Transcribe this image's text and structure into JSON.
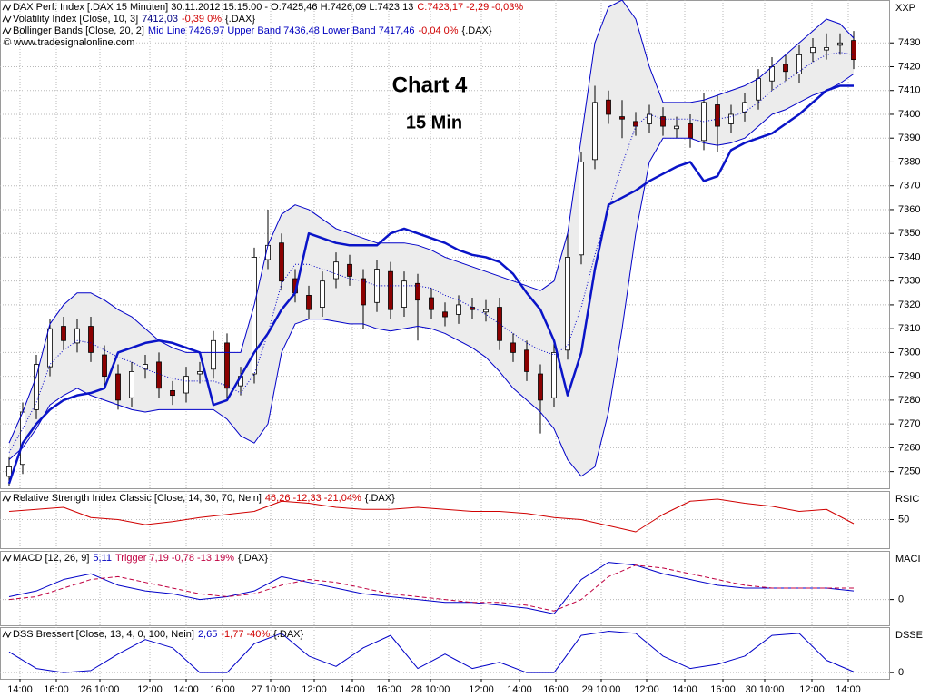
{
  "chart_data": [
    {
      "type": "candlestick",
      "header": [
        [
          {
            "text": "DAX Perf. Index [.DAX  15 Minuten] 30.11.2012 15:15:00 - O:7425,46 H:7426,09 L:7423,13",
            "color": "#000000"
          },
          {
            "text": "C:7423,17 -2,29 -0,03%",
            "color": "#d00000"
          }
        ],
        [
          {
            "text": "Volatility Index [Close, 10, 3]",
            "color": "#000000"
          },
          {
            "text": "7412,03",
            "color": "#000080"
          },
          {
            "text": "-0,39 0%",
            "color": "#d00000"
          },
          {
            "text": "{.DAX}",
            "color": "#000000"
          }
        ],
        [
          {
            "text": "Bollinger Bands [Close, 20, 2]",
            "color": "#000000"
          },
          {
            "text": "Mid Line 7426,97 Upper Band 7436,48 Lower Band 7417,46",
            "color": "#0000c0"
          },
          {
            "text": "-0,04 0%",
            "color": "#d00000"
          },
          {
            "text": "{.DAX}",
            "color": "#000000"
          }
        ]
      ],
      "source": "© www.tradesignalonline.com",
      "annotations": [
        {
          "text": "Chart 4",
          "color": "#000000"
        },
        {
          "text": "15 Min",
          "color": "#1c1cd0"
        }
      ],
      "right_label": "XXP",
      "up_color": "#ffffff",
      "down_color": "#8b0000",
      "band_fill": "#ececec",
      "x": [
        2,
        5,
        8,
        11,
        14,
        17,
        20,
        23,
        26,
        29,
        32,
        35,
        38,
        41,
        44,
        47,
        50,
        53,
        56,
        59,
        62,
        65,
        68,
        71,
        74,
        77,
        80,
        83,
        86,
        89,
        92,
        95,
        98,
        101,
        104,
        107,
        110,
        113,
        116,
        119,
        122,
        125,
        128,
        131,
        134,
        137,
        140,
        143,
        146,
        149,
        152,
        155,
        158,
        161,
        164,
        167,
        170,
        173,
        176,
        179,
        182,
        185,
        188
      ],
      "open": [
        7248,
        7253,
        7276,
        7294,
        7311,
        7304,
        7311,
        7299,
        7291,
        7281,
        7293,
        7296,
        7284,
        7283,
        7291,
        7293,
        7304,
        7286,
        7291,
        7339,
        7346,
        7331,
        7324,
        7319,
        7331,
        7337,
        7331,
        7321,
        7334,
        7319,
        7329,
        7323,
        7317,
        7316,
        7319,
        7317,
        7319,
        7304,
        7301,
        7291,
        7281,
        7301,
        7341,
        7381,
        7406,
        7399,
        7397,
        7396,
        7399,
        7394,
        7396,
        7389,
        7404,
        7396,
        7401,
        7406,
        7414,
        7421,
        7417,
        7426,
        7427,
        7429,
        7431
      ],
      "high": [
        7256,
        7279,
        7299,
        7314,
        7315,
        7314,
        7315,
        7303,
        7295,
        7296,
        7299,
        7300,
        7288,
        7294,
        7296,
        7309,
        7308,
        7294,
        7344,
        7360,
        7350,
        7335,
        7328,
        7334,
        7342,
        7341,
        7335,
        7339,
        7338,
        7334,
        7333,
        7327,
        7321,
        7324,
        7323,
        7322,
        7323,
        7308,
        7305,
        7295,
        7304,
        7350,
        7384,
        7412,
        7410,
        7406,
        7401,
        7404,
        7403,
        7399,
        7400,
        7409,
        7408,
        7404,
        7409,
        7419,
        7424,
        7425,
        7429,
        7432,
        7434,
        7434,
        7435
      ],
      "low": [
        7244,
        7249,
        7272,
        7290,
        7301,
        7300,
        7296,
        7286,
        7276,
        7277,
        7289,
        7281,
        7278,
        7279,
        7287,
        7289,
        7281,
        7282,
        7287,
        7335,
        7326,
        7321,
        7314,
        7315,
        7327,
        7328,
        7310,
        7317,
        7314,
        7315,
        7305,
        7314,
        7311,
        7312,
        7314,
        7313,
        7301,
        7296,
        7288,
        7266,
        7277,
        7297,
        7337,
        7377,
        7396,
        7390,
        7391,
        7392,
        7391,
        7390,
        7386,
        7385,
        7384,
        7392,
        7397,
        7402,
        7410,
        7414,
        7413,
        7422,
        7423,
        7425,
        7419
      ],
      "close": [
        7252,
        7275,
        7295,
        7310,
        7305,
        7310,
        7300,
        7290,
        7280,
        7292,
        7295,
        7285,
        7282,
        7290,
        7292,
        7305,
        7285,
        7290,
        7340,
        7345,
        7330,
        7325,
        7318,
        7330,
        7338,
        7332,
        7320,
        7335,
        7318,
        7330,
        7322,
        7318,
        7315,
        7320,
        7318,
        7318,
        7305,
        7300,
        7292,
        7280,
        7300,
        7340,
        7380,
        7405,
        7400,
        7398,
        7395,
        7400,
        7395,
        7395,
        7390,
        7405,
        7395,
        7400,
        7405,
        7415,
        7420,
        7418,
        7425,
        7428,
        7428,
        7430,
        7423
      ],
      "series": [
        {
          "color": "#0000c8",
          "width": 1,
          "dash": "none",
          "values": [
            7262,
            7275,
            7290,
            7312,
            7320,
            7325,
            7325,
            7322,
            7318,
            7315,
            7310,
            7305,
            7302,
            7300,
            7300,
            7300,
            7300,
            7300,
            7320,
            7345,
            7358,
            7362,
            7360,
            7356,
            7352,
            7350,
            7348,
            7346,
            7346,
            7346,
            7345,
            7343,
            7340,
            7338,
            7336,
            7334,
            7332,
            7330,
            7328,
            7326,
            7330,
            7350,
            7390,
            7430,
            7445,
            7448,
            7440,
            7420,
            7405,
            7405,
            7405,
            7406,
            7408,
            7410,
            7412,
            7415,
            7420,
            7425,
            7430,
            7435,
            7440,
            7438,
            7432
          ]
        },
        {
          "color": "#0000c8",
          "width": 1,
          "dash": "1 2",
          "values": [
            7258,
            7268,
            7279,
            7295,
            7301,
            7305,
            7304,
            7301,
            7298,
            7296,
            7293,
            7291,
            7289,
            7288,
            7288,
            7288,
            7286,
            7283,
            7291,
            7308,
            7329,
            7337,
            7337,
            7335,
            7333,
            7331,
            7330,
            7328,
            7328,
            7328,
            7328,
            7327,
            7324,
            7322,
            7319,
            7316,
            7312,
            7308,
            7304,
            7301,
            7299,
            7303,
            7319,
            7341,
            7360,
            7379,
            7395,
            7400,
            7398,
            7398,
            7398,
            7397,
            7398,
            7399,
            7401,
            7405,
            7410,
            7414,
            7418,
            7422,
            7425,
            7426,
            7425
          ]
        },
        {
          "color": "#0000c8",
          "width": 1,
          "dash": "none",
          "values": [
            7255,
            7260,
            7268,
            7278,
            7282,
            7285,
            7282,
            7280,
            7278,
            7276,
            7275,
            7276,
            7276,
            7276,
            7276,
            7276,
            7272,
            7265,
            7262,
            7270,
            7300,
            7312,
            7314,
            7314,
            7313,
            7312,
            7312,
            7310,
            7309,
            7310,
            7311,
            7310,
            7308,
            7305,
            7302,
            7298,
            7292,
            7285,
            7280,
            7275,
            7268,
            7255,
            7248,
            7252,
            7275,
            7310,
            7350,
            7380,
            7390,
            7390,
            7390,
            7388,
            7387,
            7388,
            7390,
            7395,
            7400,
            7402,
            7405,
            7408,
            7410,
            7413,
            7417
          ]
        },
        {
          "color": "#0a14c8",
          "width": 2.5,
          "dash": "none",
          "values": [
            7245,
            7262,
            7270,
            7276,
            7280,
            7282,
            7283,
            7285,
            7300,
            7302,
            7304,
            7305,
            7304,
            7302,
            7300,
            7278,
            7280,
            7290,
            7300,
            7308,
            7318,
            7325,
            7350,
            7348,
            7346,
            7345,
            7345,
            7345,
            7350,
            7352,
            7350,
            7348,
            7346,
            7343,
            7341,
            7340,
            7338,
            7333,
            7325,
            7318,
            7305,
            7282,
            7300,
            7335,
            7362,
            7365,
            7368,
            7372,
            7375,
            7378,
            7380,
            7372,
            7374,
            7385,
            7388,
            7390,
            7392,
            7396,
            7400,
            7405,
            7410,
            7412,
            7412
          ]
        }
      ],
      "xlim": [
        0,
        196
      ],
      "ylim": [
        7243,
        7448
      ],
      "xticks": [
        {
          "value": 4.4,
          "label": "14:00"
        },
        {
          "value": 12.4,
          "label": "16:00"
        },
        {
          "value": 22,
          "label": "26 10:00"
        },
        {
          "value": 33,
          "label": "12:00"
        },
        {
          "value": 41,
          "label": "14:00"
        },
        {
          "value": 49,
          "label": "16:00"
        },
        {
          "value": 59.6,
          "label": "27 10:00"
        },
        {
          "value": 69.2,
          "label": "12:00"
        },
        {
          "value": 77.6,
          "label": "14:00"
        },
        {
          "value": 85.6,
          "label": "16:00"
        },
        {
          "value": 94.8,
          "label": "28 10:00"
        },
        {
          "value": 106,
          "label": "12:00"
        },
        {
          "value": 114.4,
          "label": "14:00"
        },
        {
          "value": 122.4,
          "label": "16:00"
        },
        {
          "value": 132.4,
          "label": "29 10:00"
        },
        {
          "value": 142.4,
          "label": "12:00"
        },
        {
          "value": 150.8,
          "label": "14:00"
        },
        {
          "value": 159.2,
          "label": "16:00"
        },
        {
          "value": 168.4,
          "label": "30 10:00"
        },
        {
          "value": 178.8,
          "label": "12:00"
        },
        {
          "value": 186.8,
          "label": "14:00"
        }
      ],
      "yticks": [
        7250,
        7260,
        7270,
        7280,
        7290,
        7300,
        7310,
        7320,
        7330,
        7340,
        7350,
        7360,
        7370,
        7380,
        7390,
        7400,
        7410,
        7420,
        7430
      ],
      "grid": true
    },
    {
      "type": "line",
      "header": [
        [
          {
            "text": "Relative Strength Index Classic [Close, 14, 30, 70, Nein]",
            "color": "#000000"
          },
          {
            "text": "46,26 -12,33 -21,04%",
            "color": "#d00000"
          },
          {
            "text": "{.DAX}",
            "color": "#000000"
          }
        ]
      ],
      "right_label": "RSIC",
      "x": [
        2,
        8,
        14,
        20,
        26,
        32,
        38,
        44,
        50,
        56,
        62,
        68,
        74,
        80,
        86,
        92,
        98,
        104,
        110,
        116,
        122,
        128,
        134,
        140,
        146,
        152,
        158,
        164,
        170,
        176,
        182,
        188
      ],
      "series": [
        {
          "color": "#d00000",
          "width": 1,
          "dash": "none",
          "values": [
            58,
            60,
            62,
            52,
            50,
            45,
            48,
            52,
            55,
            58,
            68,
            66,
            62,
            60,
            60,
            62,
            60,
            58,
            58,
            56,
            52,
            50,
            44,
            38,
            55,
            68,
            70,
            66,
            63,
            58,
            60,
            46
          ]
        }
      ],
      "xlim": [
        0,
        196
      ],
      "ylim": [
        22,
        78
      ],
      "yticks": [
        50
      ],
      "grid": true
    },
    {
      "type": "line",
      "header": [
        [
          {
            "text": "MACD [12, 26, 9]",
            "color": "#000000"
          },
          {
            "text": "5,11",
            "color": "#0000c0"
          },
          {
            "text": "Trigger 7,19 -0,78 -13,19%",
            "color": "#c00040"
          },
          {
            "text": "{.DAX}",
            "color": "#000000"
          }
        ]
      ],
      "right_label": "MACI",
      "x": [
        2,
        8,
        14,
        20,
        26,
        32,
        38,
        44,
        50,
        56,
        62,
        68,
        74,
        80,
        86,
        92,
        98,
        104,
        110,
        116,
        122,
        128,
        134,
        140,
        146,
        152,
        158,
        164,
        170,
        176,
        182,
        188
      ],
      "series": [
        {
          "color": "#0000c8",
          "width": 1,
          "dash": "none",
          "values": [
            1,
            3,
            7,
            9,
            5,
            3,
            2,
            0,
            1,
            3,
            8,
            6,
            4,
            2,
            1,
            0,
            -1,
            -1,
            -2,
            -3,
            -5,
            7,
            13,
            12,
            9,
            7,
            5,
            4,
            4,
            4,
            4,
            3
          ]
        },
        {
          "color": "#c00040",
          "width": 1,
          "dash": "5 3",
          "values": [
            0,
            1,
            4,
            7,
            8,
            6,
            4,
            2,
            1,
            2,
            5,
            7,
            6,
            4,
            2,
            1,
            0,
            -1,
            -1,
            -2,
            -4,
            0,
            8,
            12,
            11,
            9,
            7,
            5,
            4,
            4,
            4,
            4
          ]
        }
      ],
      "xlim": [
        0,
        196
      ],
      "ylim": [
        -9,
        17
      ],
      "yticks": [
        0
      ],
      "grid": true
    },
    {
      "type": "line",
      "header": [
        [
          {
            "text": "DSS Bressert [Close, 13, 4, 0, 100, Nein]",
            "color": "#000000"
          },
          {
            "text": "2,65",
            "color": "#0000c0"
          },
          {
            "text": "-1,77 -40%",
            "color": "#d00000"
          },
          {
            "text": "{.DAX}",
            "color": "#000000"
          }
        ]
      ],
      "right_label": "DSSE",
      "x": [
        2,
        8,
        14,
        20,
        26,
        32,
        38,
        44,
        50,
        56,
        62,
        68,
        74,
        80,
        86,
        92,
        98,
        104,
        110,
        116,
        122,
        128,
        134,
        140,
        146,
        152,
        158,
        164,
        170,
        176,
        182,
        188
      ],
      "series": [
        {
          "color": "#0000c8",
          "width": 1,
          "dash": "none",
          "values": [
            50,
            10,
            0,
            5,
            45,
            80,
            60,
            0,
            0,
            70,
            95,
            40,
            15,
            60,
            90,
            10,
            45,
            10,
            25,
            0,
            0,
            90,
            100,
            95,
            40,
            10,
            20,
            40,
            90,
            95,
            30,
            2
          ]
        }
      ],
      "xlim": [
        0,
        196
      ],
      "ylim": [
        -15,
        110
      ],
      "yticks": [
        0
      ],
      "grid": true
    }
  ]
}
